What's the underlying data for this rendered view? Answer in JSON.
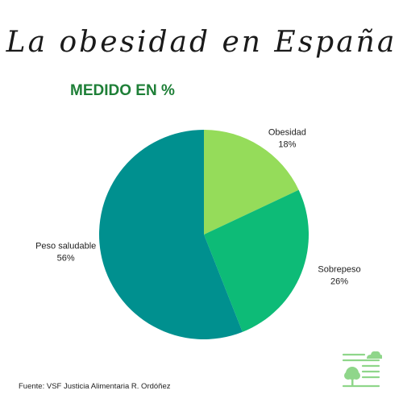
{
  "title": "La obesidad en España",
  "subtitle": "MEDIDO EN %",
  "source": "Fuente: VSF Justicia Alimentaria R. Ordóñez",
  "logo_icon": "tree-cloud-logo-icon",
  "colors": {
    "subtitle": "#1e7f37",
    "logo": "#8fd68a"
  },
  "chart_data": {
    "type": "pie",
    "labels": [
      "Obesidad",
      "Sobrepeso",
      "Peso saludable"
    ],
    "values": [
      18,
      26,
      56
    ],
    "value_labels": [
      "18%",
      "26%",
      "56%"
    ],
    "colors": [
      "#95dc5a",
      "#0dbb77",
      "#00908f"
    ],
    "start": "12 o'clock",
    "direction": "clockwise"
  }
}
